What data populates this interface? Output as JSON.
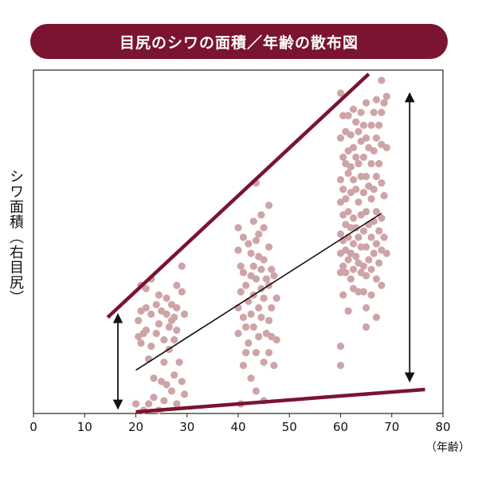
{
  "chart_data": {
    "type": "scatter",
    "title": "目尻のシワの面積／年齢の散布図",
    "ylabel": "シワ面積（右目尻）",
    "xlabel": "（年齢）",
    "x_ticks": [
      "0",
      "10",
      "20",
      "30",
      "40",
      "50",
      "60",
      "70",
      "80"
    ],
    "xlim": [
      0,
      80
    ],
    "grid": false,
    "colors": {
      "banner": "#7a1430",
      "points": "#cfa4a6",
      "envelope": "#7a1430",
      "trend": "#111111",
      "arrow": "#111111"
    },
    "trend_line": {
      "x": [
        20,
        68
      ],
      "y": [
        0.135,
        0.625
      ]
    },
    "envelope_upper": {
      "x": [
        14.5,
        65.5
      ],
      "y": [
        0.3,
        1.06
      ]
    },
    "envelope_lower": {
      "x": [
        20,
        76.5
      ],
      "y": [
        0.005,
        0.075
      ]
    },
    "range_arrow_young": {
      "x": 16.5,
      "y": [
        0.015,
        0.31
      ]
    },
    "range_arrow_old": {
      "x": 73.5,
      "y": [
        0.1,
        1.0
      ]
    },
    "series": [
      {
        "points": [
          [
            20,
            0.03
          ],
          [
            20.5,
            0.29
          ],
          [
            20.5,
            0.24
          ],
          [
            21,
            0.4
          ],
          [
            21,
            0.32
          ],
          [
            21,
            0.22
          ],
          [
            21.5,
            0.25
          ],
          [
            21.5,
            0.01
          ],
          [
            22,
            0.39
          ],
          [
            22,
            0.33
          ],
          [
            22,
            0.26
          ],
          [
            22.5,
            0.17
          ],
          [
            22.5,
            0.03
          ],
          [
            23,
            0.42
          ],
          [
            23,
            0.31
          ],
          [
            23,
            0.21
          ],
          [
            23.5,
            0.11
          ],
          [
            23.5,
            0.05
          ],
          [
            24,
            0.34
          ],
          [
            24,
            0.25
          ],
          [
            24.5,
            0.37
          ],
          [
            24.5,
            0.28
          ],
          [
            24.5,
            0.01
          ],
          [
            25,
            0.32
          ],
          [
            25,
            0.1
          ],
          [
            25.5,
            0.23
          ],
          [
            25.5,
            0.16
          ],
          [
            25.5,
            0.04
          ],
          [
            26,
            0.36
          ],
          [
            26,
            0.31
          ],
          [
            26,
            0.09
          ],
          [
            26.5,
            0.27
          ],
          [
            26.5,
            0.2
          ],
          [
            27,
            0.34
          ],
          [
            27,
            0.29
          ],
          [
            27,
            0.07
          ],
          [
            27.5,
            0.3
          ],
          [
            27.5,
            0.23
          ],
          [
            27.5,
            0.12
          ],
          [
            28,
            0.4
          ],
          [
            28,
            0.33
          ],
          [
            28,
            0.26
          ],
          [
            28,
            0.03
          ],
          [
            28.5,
            0.16
          ],
          [
            29,
            0.46
          ],
          [
            29,
            0.38
          ],
          [
            29,
            0.1
          ],
          [
            29.5,
            0.31
          ],
          [
            29.5,
            0.06
          ],
          [
            40,
            0.58
          ],
          [
            40,
            0.51
          ],
          [
            40,
            0.33
          ],
          [
            40,
            0.25
          ],
          [
            40.5,
            0.46
          ],
          [
            40.5,
            0.38
          ],
          [
            40.5,
            0.03
          ],
          [
            41,
            0.55
          ],
          [
            41,
            0.44
          ],
          [
            41,
            0.3
          ],
          [
            41,
            0.15
          ],
          [
            41.5,
            0.4
          ],
          [
            41.5,
            0.27
          ],
          [
            41.5,
            0.19
          ],
          [
            42,
            0.53
          ],
          [
            42,
            0.35
          ],
          [
            42,
            0.22
          ],
          [
            42.5,
            0.5
          ],
          [
            42.5,
            0.43
          ],
          [
            42.5,
            0.31
          ],
          [
            42.5,
            0.11
          ],
          [
            43,
            0.6
          ],
          [
            43,
            0.46
          ],
          [
            43,
            0.37
          ],
          [
            43,
            0.27
          ],
          [
            43.5,
            0.72
          ],
          [
            43.5,
            0.54
          ],
          [
            43.5,
            0.42
          ],
          [
            43.5,
            0.19
          ],
          [
            43.5,
            0.07
          ],
          [
            44,
            0.56
          ],
          [
            44,
            0.49
          ],
          [
            44,
            0.33
          ],
          [
            44,
            0.24
          ],
          [
            44.5,
            0.62
          ],
          [
            44.5,
            0.45
          ],
          [
            44.5,
            0.39
          ],
          [
            44.5,
            0.3
          ],
          [
            45,
            0.58
          ],
          [
            45,
            0.48
          ],
          [
            45,
            0.36
          ],
          [
            45,
            0.16
          ],
          [
            45,
            0.04
          ],
          [
            45.5,
            0.42
          ],
          [
            45.5,
            0.25
          ],
          [
            46,
            0.65
          ],
          [
            46,
            0.52
          ],
          [
            46,
            0.4
          ],
          [
            46,
            0.29
          ],
          [
            46,
            0.19
          ],
          [
            46.5,
            0.45
          ],
          [
            46.5,
            0.33
          ],
          [
            46.5,
            0.24
          ],
          [
            47,
            0.43
          ],
          [
            47,
            0.15
          ],
          [
            47.5,
            0.36
          ],
          [
            47.5,
            0.23
          ],
          [
            60,
            1.0
          ],
          [
            60,
            0.86
          ],
          [
            60,
            0.73
          ],
          [
            60,
            0.66
          ],
          [
            60,
            0.56
          ],
          [
            60,
            0.5
          ],
          [
            60,
            0.44
          ],
          [
            60,
            0.21
          ],
          [
            60,
            0.15
          ],
          [
            60.5,
            0.93
          ],
          [
            60.5,
            0.8
          ],
          [
            60.5,
            0.7
          ],
          [
            60.5,
            0.62
          ],
          [
            60.5,
            0.54
          ],
          [
            60.5,
            0.46
          ],
          [
            60.5,
            0.37
          ],
          [
            61,
            0.88
          ],
          [
            61,
            0.78
          ],
          [
            61,
            0.67
          ],
          [
            61,
            0.59
          ],
          [
            61,
            0.51
          ],
          [
            61,
            0.44
          ],
          [
            61.5,
            0.93
          ],
          [
            61.5,
            0.82
          ],
          [
            61.5,
            0.75
          ],
          [
            61.5,
            0.63
          ],
          [
            61.5,
            0.55
          ],
          [
            61.5,
            0.48
          ],
          [
            61.5,
            0.32
          ],
          [
            62,
            0.87
          ],
          [
            62,
            0.77
          ],
          [
            62,
            0.69
          ],
          [
            62,
            0.58
          ],
          [
            62,
            0.5
          ],
          [
            62,
            0.42
          ],
          [
            62.5,
            0.95
          ],
          [
            62.5,
            0.83
          ],
          [
            62.5,
            0.73
          ],
          [
            62.5,
            0.61
          ],
          [
            62.5,
            0.53
          ],
          [
            62.5,
            0.45
          ],
          [
            62.5,
            0.39
          ],
          [
            63,
            0.91
          ],
          [
            63,
            0.8
          ],
          [
            63,
            0.7
          ],
          [
            63,
            0.58
          ],
          [
            63,
            0.49
          ],
          [
            63.5,
            0.88
          ],
          [
            63.5,
            0.78
          ],
          [
            63.5,
            0.66
          ],
          [
            63.5,
            0.55
          ],
          [
            63.5,
            0.47
          ],
          [
            63.5,
            0.38
          ],
          [
            64,
            0.94
          ],
          [
            64,
            0.85
          ],
          [
            64,
            0.74
          ],
          [
            64,
            0.62
          ],
          [
            64,
            0.52
          ],
          [
            64,
            0.44
          ],
          [
            64.5,
            0.9
          ],
          [
            64.5,
            0.8
          ],
          [
            64.5,
            0.69
          ],
          [
            64.5,
            0.57
          ],
          [
            64.5,
            0.46
          ],
          [
            64.5,
            0.38
          ],
          [
            65,
            0.97
          ],
          [
            65,
            0.86
          ],
          [
            65,
            0.74
          ],
          [
            65,
            0.63
          ],
          [
            65,
            0.52
          ],
          [
            65,
            0.43
          ],
          [
            65,
            0.33
          ],
          [
            65,
            0.27
          ],
          [
            65.5,
            0.83
          ],
          [
            65.5,
            0.71
          ],
          [
            65.5,
            0.59
          ],
          [
            65.5,
            0.48
          ],
          [
            66,
            0.9
          ],
          [
            66,
            0.78
          ],
          [
            66,
            0.67
          ],
          [
            66,
            0.55
          ],
          [
            66,
            0.45
          ],
          [
            66,
            0.37
          ],
          [
            66.5,
            0.94
          ],
          [
            66.5,
            0.82
          ],
          [
            66.5,
            0.7
          ],
          [
            66.5,
            0.6
          ],
          [
            66.5,
            0.5
          ],
          [
            67,
            0.98
          ],
          [
            67,
            0.86
          ],
          [
            67,
            0.74
          ],
          [
            67,
            0.63
          ],
          [
            67,
            0.53
          ],
          [
            67,
            0.42
          ],
          [
            67,
            0.3
          ],
          [
            67.5,
            0.9
          ],
          [
            67.5,
            0.78
          ],
          [
            67.5,
            0.57
          ],
          [
            67.5,
            0.47
          ],
          [
            68,
            1.04
          ],
          [
            68,
            0.94
          ],
          [
            68,
            0.84
          ],
          [
            68,
            0.72
          ],
          [
            68,
            0.61
          ],
          [
            68,
            0.51
          ],
          [
            68,
            0.4
          ],
          [
            68.5,
            0.97
          ],
          [
            68.5,
            0.68
          ],
          [
            68.5,
            0.55
          ],
          [
            69,
            0.99
          ],
          [
            69,
            0.83
          ],
          [
            69,
            0.5
          ]
        ]
      }
    ]
  }
}
